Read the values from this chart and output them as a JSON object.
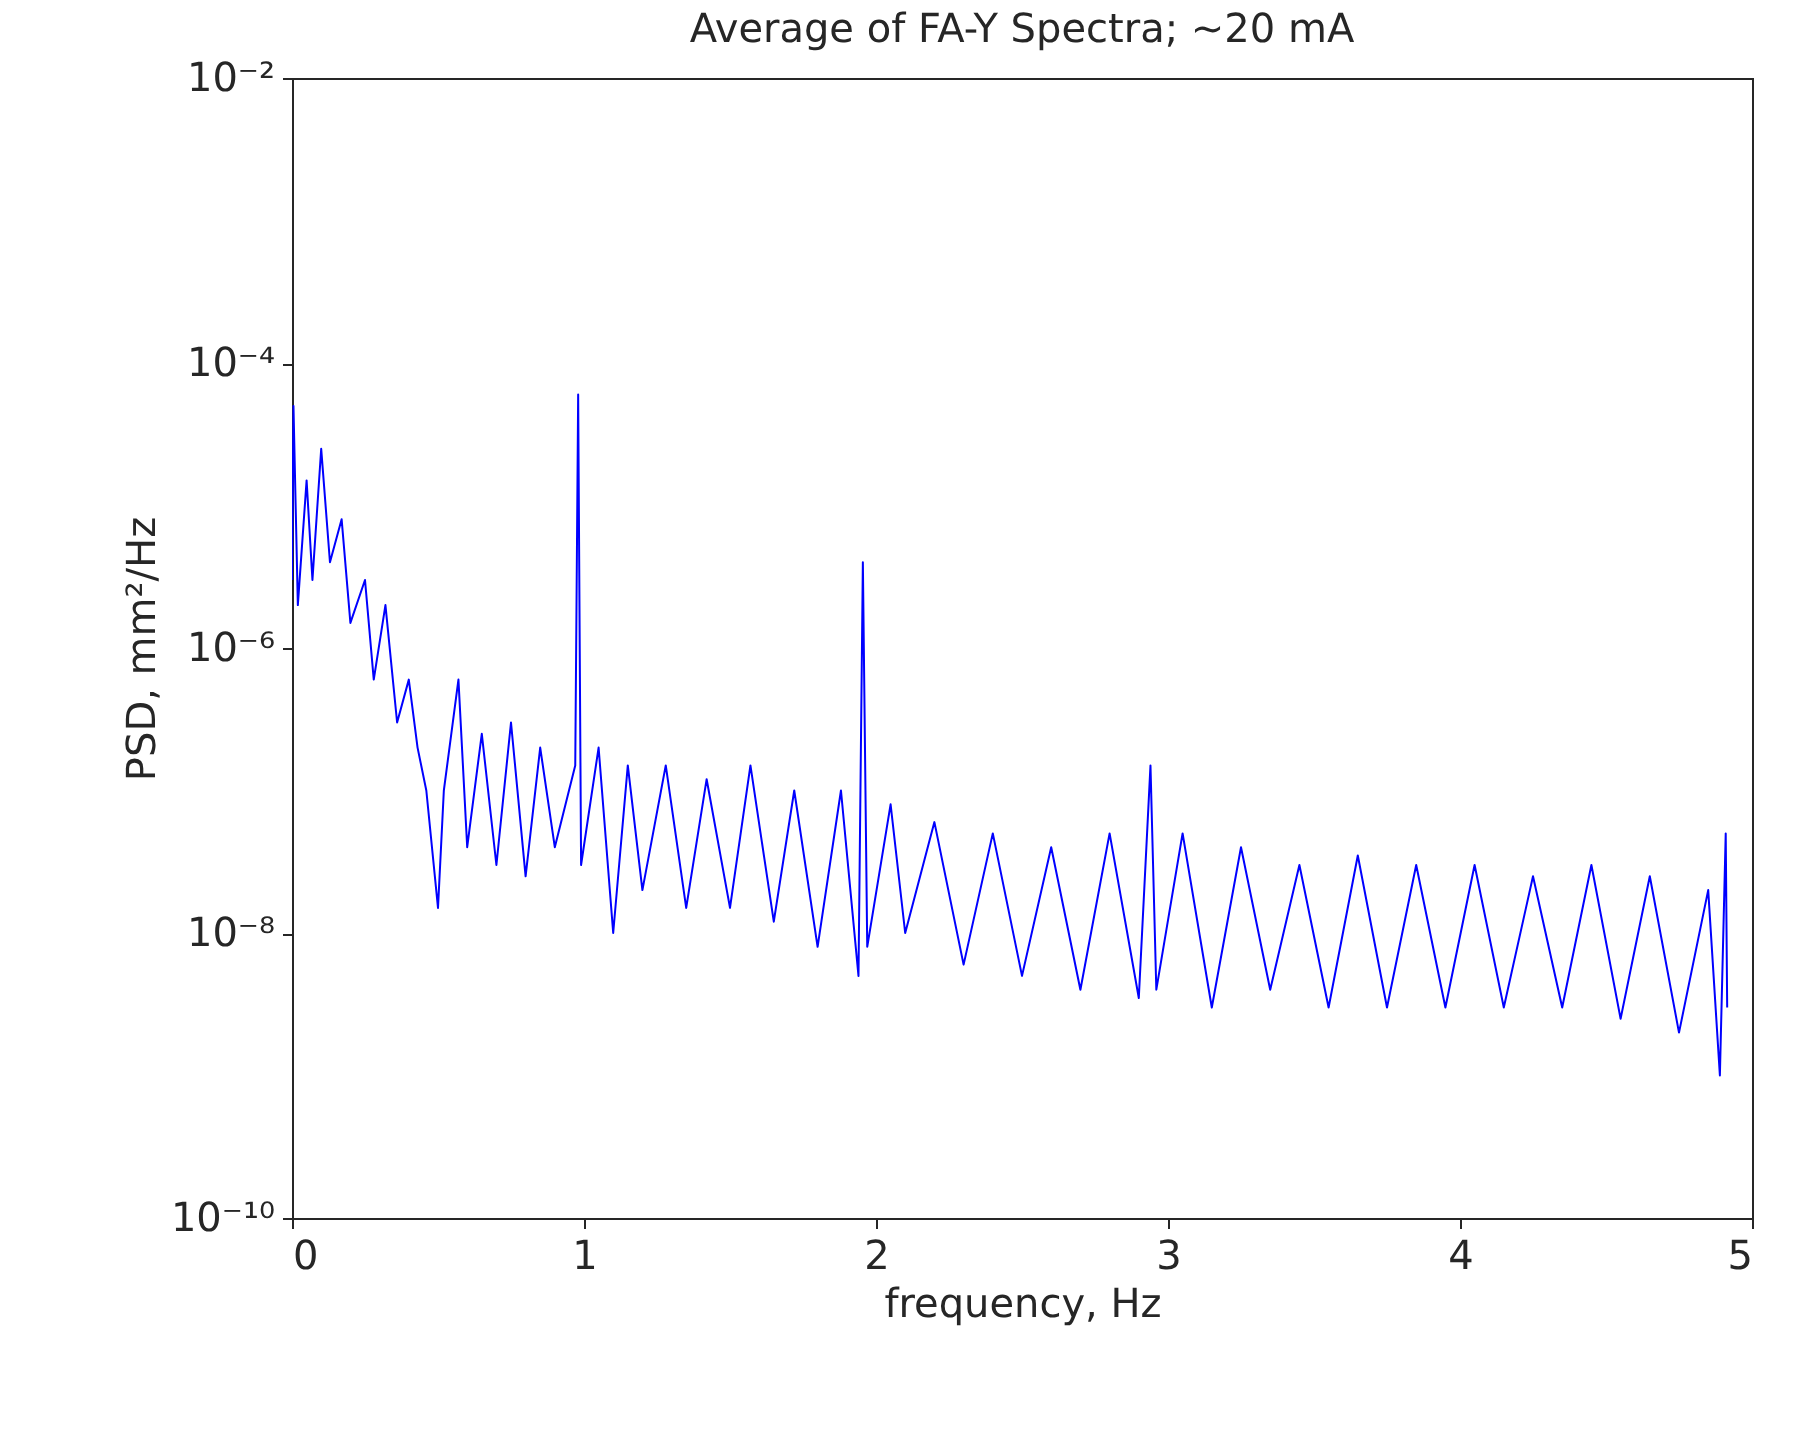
{
  "chart_data": {
    "type": "line",
    "title": "Average of FA-Y Spectra; ~20 mA",
    "xlabel": "frequency, Hz",
    "ylabel": "PSD, mm²/Hz",
    "log": "y",
    "grid": false,
    "marker": "none",
    "line_style": "solid",
    "xlim": [
      0,
      5
    ],
    "xticks": [
      0,
      1,
      2,
      3,
      4,
      5
    ],
    "ylim": [
      1e-10,
      0.01
    ],
    "yticks": [
      {
        "value": 1e-10,
        "label": "10⁻¹⁰"
      },
      {
        "value": 1e-08,
        "label": "10⁻⁸"
      },
      {
        "value": 1e-06,
        "label": "10⁻⁶"
      },
      {
        "value": 0.0001,
        "label": "10⁻⁴"
      },
      {
        "value": 0.01,
        "label": "10⁻²"
      }
    ],
    "x": [
      0.0,
      0.005,
      0.02,
      0.05,
      0.07,
      0.1,
      0.13,
      0.17,
      0.2,
      0.25,
      0.28,
      0.32,
      0.36,
      0.4,
      0.43,
      0.46,
      0.5,
      0.52,
      0.57,
      0.6,
      0.65,
      0.7,
      0.75,
      0.8,
      0.85,
      0.9,
      0.97,
      0.98,
      0.99,
      1.05,
      1.1,
      1.15,
      1.2,
      1.28,
      1.35,
      1.42,
      1.5,
      1.57,
      1.65,
      1.72,
      1.8,
      1.88,
      1.94,
      1.955,
      1.97,
      2.05,
      2.1,
      2.2,
      2.3,
      2.4,
      2.5,
      2.6,
      2.7,
      2.8,
      2.9,
      2.94,
      2.96,
      3.05,
      3.15,
      3.25,
      3.35,
      3.45,
      3.55,
      3.65,
      3.75,
      3.85,
      3.95,
      4.05,
      4.15,
      4.25,
      4.35,
      4.45,
      4.55,
      4.65,
      4.75,
      4.85,
      4.89,
      4.91,
      4.915
    ],
    "series": [
      {
        "color": "#0000ff",
        "values": [
          3e-06,
          5e-05,
          2e-06,
          1.5e-05,
          3e-06,
          2.5e-05,
          4e-06,
          8e-06,
          1.5e-06,
          3e-06,
          6e-07,
          2e-06,
          3e-07,
          6e-07,
          2e-07,
          1e-07,
          1.5e-08,
          1e-07,
          6e-07,
          4e-08,
          2.5e-07,
          3e-08,
          3e-07,
          2.5e-08,
          2e-07,
          4e-08,
          1.5e-07,
          6e-05,
          3e-08,
          2e-07,
          1e-08,
          1.5e-07,
          2e-08,
          1.5e-07,
          1.5e-08,
          1.2e-07,
          1.5e-08,
          1.5e-07,
          1.2e-08,
          1e-07,
          8e-09,
          1e-07,
          5e-09,
          4e-06,
          8e-09,
          8e-08,
          1e-08,
          6e-08,
          6e-09,
          5e-08,
          5e-09,
          4e-08,
          4e-09,
          5e-08,
          3.5e-09,
          1.5e-07,
          4e-09,
          5e-08,
          3e-09,
          4e-08,
          4e-09,
          3e-08,
          3e-09,
          3.5e-08,
          3e-09,
          3e-08,
          3e-09,
          3e-08,
          3e-09,
          2.5e-08,
          3e-09,
          3e-08,
          2.5e-09,
          2.5e-08,
          2e-09,
          2e-08,
          1e-09,
          5e-08,
          3e-09
        ]
      }
    ]
  }
}
